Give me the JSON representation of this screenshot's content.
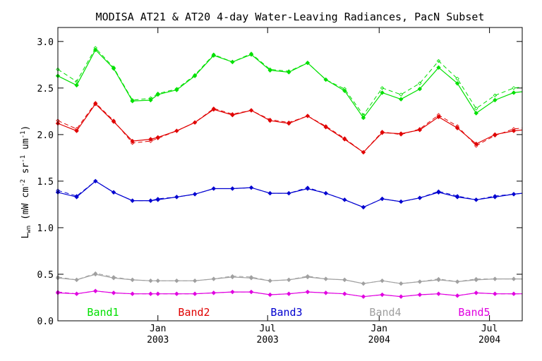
{
  "chart_data": {
    "type": "line",
    "title": "MODISA AT21 & AT20 4-day Water-Leaving Radiances, PacN Subset",
    "ylabel": "L_wn (mW cm^-2 sr^-1 um^-1)",
    "ylabel_parts": {
      "L": "L",
      "sub": "wn",
      "a": " (mW cm",
      "e1": "-2",
      "b": " sr",
      "e2": "-1",
      "c": " um",
      "e3": "-1",
      "d": ")"
    },
    "xlim": [
      "2002-07-20",
      "2004-08-24"
    ],
    "ylim": [
      0.0,
      3.15
    ],
    "yticks": [
      0.0,
      0.5,
      1.0,
      1.5,
      2.0,
      2.5,
      3.0
    ],
    "ytick_labels": [
      "0.0",
      "0.5",
      "1.0",
      "1.5",
      "2.0",
      "2.5",
      "3.0"
    ],
    "xticks": [
      {
        "date": "2003-01-01",
        "month": "Jan",
        "year": "2003"
      },
      {
        "date": "2003-07-01",
        "month": "Jul",
        "year": "2003"
      },
      {
        "date": "2004-01-01",
        "month": "Jan",
        "year": "2004"
      },
      {
        "date": "2004-07-01",
        "month": "Jul",
        "year": "2004"
      }
    ],
    "x": [
      "2002-07-20",
      "2002-08-20",
      "2002-09-20",
      "2002-10-20",
      "2002-11-20",
      "2002-12-20",
      "2003-01-01",
      "2003-02-01",
      "2003-03-03",
      "2003-04-03",
      "2003-05-04",
      "2003-06-04",
      "2003-07-05",
      "2003-08-05",
      "2003-09-05",
      "2003-10-05",
      "2003-11-05",
      "2003-12-06",
      "2004-01-06",
      "2004-02-06",
      "2004-03-08",
      "2004-04-08",
      "2004-05-09",
      "2004-06-09",
      "2004-07-10",
      "2004-08-10",
      "2004-08-24"
    ],
    "series": [
      {
        "name": "Band1",
        "color": "#00e000",
        "solid": [
          2.63,
          2.53,
          2.91,
          2.71,
          2.36,
          2.37,
          2.43,
          2.48,
          2.63,
          2.85,
          2.78,
          2.86,
          2.69,
          2.67,
          2.77,
          2.59,
          2.47,
          2.18,
          2.45,
          2.38,
          2.49,
          2.72,
          2.55,
          2.23,
          2.37,
          2.45,
          2.46
        ],
        "dashed": [
          2.7,
          2.57,
          2.93,
          2.72,
          2.37,
          2.39,
          2.44,
          2.49,
          2.64,
          2.86,
          2.78,
          2.87,
          2.7,
          2.68,
          2.77,
          2.59,
          2.49,
          2.21,
          2.5,
          2.43,
          2.55,
          2.79,
          2.6,
          2.28,
          2.42,
          2.5,
          2.51
        ]
      },
      {
        "name": "Band2",
        "color": "#e00000",
        "solid": [
          2.12,
          2.04,
          2.33,
          2.14,
          1.93,
          1.95,
          1.97,
          2.04,
          2.13,
          2.27,
          2.21,
          2.26,
          2.15,
          2.12,
          2.2,
          2.08,
          1.95,
          1.81,
          2.02,
          2.01,
          2.05,
          2.19,
          2.07,
          1.9,
          2.0,
          2.04,
          2.05
        ],
        "dashed": [
          2.15,
          2.06,
          2.34,
          2.15,
          1.91,
          1.93,
          1.96,
          2.04,
          2.13,
          2.28,
          2.22,
          2.26,
          2.16,
          2.13,
          2.2,
          2.09,
          1.96,
          1.81,
          2.03,
          2.0,
          2.06,
          2.21,
          2.09,
          1.88,
          1.99,
          2.06,
          2.07
        ]
      },
      {
        "name": "Band3",
        "color": "#0000d0",
        "solid": [
          1.38,
          1.33,
          1.5,
          1.38,
          1.29,
          1.29,
          1.3,
          1.33,
          1.36,
          1.42,
          1.42,
          1.43,
          1.37,
          1.37,
          1.42,
          1.37,
          1.3,
          1.22,
          1.31,
          1.28,
          1.32,
          1.38,
          1.33,
          1.3,
          1.33,
          1.36,
          1.37
        ],
        "dashed": [
          1.4,
          1.34,
          1.5,
          1.38,
          1.29,
          1.29,
          1.31,
          1.33,
          1.36,
          1.42,
          1.42,
          1.43,
          1.37,
          1.37,
          1.43,
          1.37,
          1.3,
          1.22,
          1.31,
          1.28,
          1.32,
          1.39,
          1.34,
          1.3,
          1.34,
          1.36,
          1.37
        ]
      },
      {
        "name": "Band4",
        "color": "#a0a0a0",
        "solid": [
          0.46,
          0.44,
          0.5,
          0.46,
          0.44,
          0.43,
          0.43,
          0.43,
          0.43,
          0.45,
          0.47,
          0.46,
          0.43,
          0.44,
          0.47,
          0.45,
          0.44,
          0.4,
          0.43,
          0.4,
          0.42,
          0.44,
          0.42,
          0.44,
          0.45,
          0.45,
          0.45
        ],
        "dashed": [
          0.47,
          0.44,
          0.51,
          0.47,
          0.44,
          0.43,
          0.43,
          0.43,
          0.43,
          0.45,
          0.48,
          0.47,
          0.43,
          0.44,
          0.48,
          0.45,
          0.44,
          0.4,
          0.43,
          0.4,
          0.42,
          0.45,
          0.42,
          0.45,
          0.45,
          0.45,
          0.45
        ]
      },
      {
        "name": "Band5",
        "color": "#e000e0",
        "solid": [
          0.3,
          0.29,
          0.32,
          0.3,
          0.29,
          0.29,
          0.29,
          0.29,
          0.29,
          0.3,
          0.31,
          0.31,
          0.28,
          0.29,
          0.31,
          0.3,
          0.29,
          0.26,
          0.28,
          0.26,
          0.28,
          0.29,
          0.27,
          0.3,
          0.29,
          0.29,
          0.29
        ],
        "dashed": [
          0.31,
          0.29,
          0.32,
          0.3,
          0.29,
          0.29,
          0.29,
          0.29,
          0.29,
          0.3,
          0.31,
          0.31,
          0.28,
          0.29,
          0.31,
          0.3,
          0.29,
          0.26,
          0.28,
          0.26,
          0.28,
          0.29,
          0.27,
          0.3,
          0.29,
          0.29,
          0.29
        ]
      }
    ],
    "grid": false,
    "legend_position": "bottom, inside plot"
  }
}
